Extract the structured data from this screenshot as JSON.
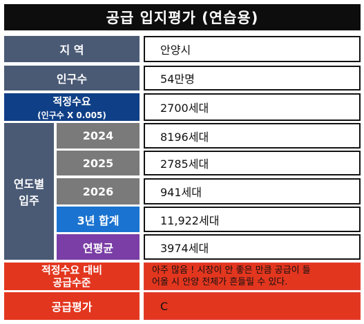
{
  "title": "공급 입지평가 (연습용)",
  "rows": {
    "region": {
      "label": "지 역",
      "value": "안양시"
    },
    "population": {
      "label": "인구수",
      "value": "54만명"
    },
    "proper_demand": {
      "label": "적정수요",
      "sublabel": "(인구수 X 0.005)",
      "value": "2700세대"
    }
  },
  "yearly": {
    "label_line1": "연도별",
    "label_line2": "입주",
    "years": [
      {
        "year": "2024",
        "value": "8196세대"
      },
      {
        "year": "2025",
        "value": "2785세대"
      },
      {
        "year": "2026",
        "value": "941세대"
      }
    ],
    "total": {
      "label": "3년 합계",
      "value": "11,922세대"
    },
    "average": {
      "label": "연평균",
      "value": "3974세대"
    }
  },
  "supply_level": {
    "label_line1": "적정수요 대비",
    "label_line2": "공급수준",
    "value_line1": "아주 많음 ! 시장이 안 좋은 만큼 공급이 들",
    "value_line2": "어올 시 안양 전체가 흔들릴 수 있다."
  },
  "supply_rating": {
    "label": "공급평가",
    "value": "C"
  },
  "colors": {
    "title_bg": "#0d0d0d",
    "slate": "#4a5a75",
    "navy": "#0f3f86",
    "gray": "#7a7a7a",
    "blue": "#1a73d0",
    "purple": "#7a3ea6",
    "red": "#e3361f"
  }
}
